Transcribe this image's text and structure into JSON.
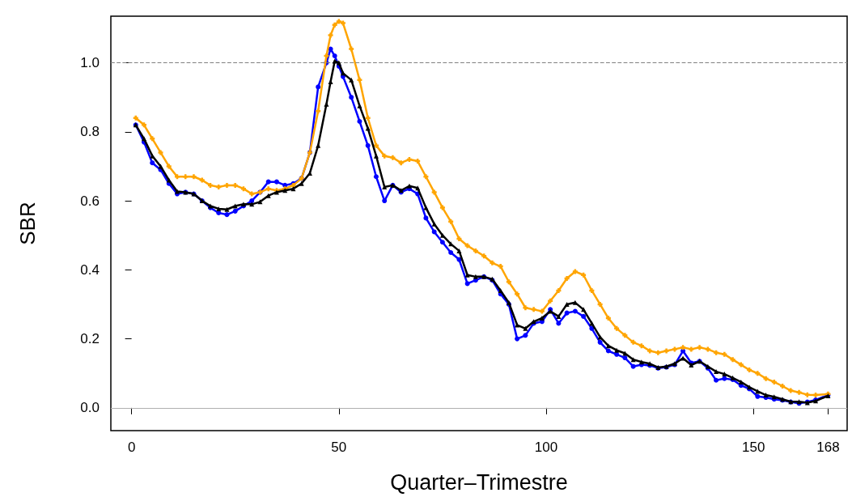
{
  "chart_data": {
    "type": "line",
    "xlabel": "Quarter–Trimestre",
    "ylabel": "SBR",
    "x": [
      1,
      3,
      5,
      7,
      9,
      11,
      13,
      15,
      17,
      19,
      21,
      23,
      25,
      27,
      29,
      31,
      33,
      35,
      37,
      39,
      41,
      43,
      45,
      47,
      48,
      49,
      50,
      51,
      53,
      55,
      57,
      59,
      61,
      63,
      65,
      67,
      69,
      71,
      73,
      75,
      77,
      79,
      81,
      83,
      85,
      87,
      89,
      91,
      93,
      95,
      97,
      99,
      101,
      103,
      105,
      107,
      109,
      111,
      113,
      115,
      117,
      119,
      121,
      123,
      125,
      127,
      129,
      131,
      133,
      135,
      137,
      139,
      141,
      143,
      145,
      147,
      149,
      151,
      153,
      155,
      157,
      159,
      161,
      163,
      165,
      168
    ],
    "series": [
      {
        "color": "#0000ff",
        "marker": "circle",
        "values": [
          0.82,
          0.77,
          0.71,
          0.69,
          0.65,
          0.62,
          0.625,
          0.62,
          0.6,
          0.58,
          0.565,
          0.56,
          0.57,
          0.585,
          0.6,
          0.625,
          0.655,
          0.655,
          0.645,
          0.65,
          0.665,
          0.74,
          0.93,
          1.0,
          1.04,
          1.02,
          0.99,
          0.96,
          0.9,
          0.83,
          0.76,
          0.67,
          0.6,
          0.645,
          0.625,
          0.635,
          0.62,
          0.55,
          0.51,
          0.48,
          0.45,
          0.43,
          0.36,
          0.37,
          0.38,
          0.37,
          0.33,
          0.3,
          0.2,
          0.21,
          0.245,
          0.25,
          0.285,
          0.245,
          0.275,
          0.28,
          0.265,
          0.23,
          0.19,
          0.165,
          0.155,
          0.145,
          0.12,
          0.125,
          0.123,
          0.115,
          0.118,
          0.125,
          0.165,
          0.13,
          0.135,
          0.115,
          0.08,
          0.085,
          0.082,
          0.065,
          0.055,
          0.033,
          0.03,
          0.025,
          0.022,
          0.017,
          0.013,
          0.017,
          0.023,
          0.037
        ]
      },
      {
        "color": "#ffa500",
        "marker": "cross",
        "values": [
          0.84,
          0.82,
          0.78,
          0.74,
          0.7,
          0.67,
          0.67,
          0.67,
          0.66,
          0.645,
          0.64,
          0.645,
          0.645,
          0.635,
          0.62,
          0.625,
          0.635,
          0.63,
          0.635,
          0.645,
          0.665,
          0.74,
          0.86,
          1.02,
          1.08,
          1.11,
          1.12,
          1.115,
          1.04,
          0.95,
          0.84,
          0.76,
          0.73,
          0.725,
          0.71,
          0.72,
          0.715,
          0.67,
          0.625,
          0.58,
          0.54,
          0.49,
          0.47,
          0.455,
          0.44,
          0.42,
          0.41,
          0.365,
          0.33,
          0.29,
          0.285,
          0.28,
          0.31,
          0.34,
          0.375,
          0.395,
          0.385,
          0.34,
          0.3,
          0.26,
          0.23,
          0.21,
          0.19,
          0.18,
          0.165,
          0.16,
          0.165,
          0.17,
          0.175,
          0.17,
          0.175,
          0.17,
          0.16,
          0.155,
          0.14,
          0.125,
          0.11,
          0.1,
          0.085,
          0.075,
          0.063,
          0.05,
          0.045,
          0.038,
          0.037,
          0.04
        ]
      },
      {
        "color": "#000000",
        "marker": "triangle",
        "values": [
          0.82,
          0.78,
          0.73,
          0.7,
          0.66,
          0.627,
          0.625,
          0.62,
          0.6,
          0.585,
          0.577,
          0.575,
          0.585,
          0.59,
          0.59,
          0.597,
          0.615,
          0.625,
          0.63,
          0.635,
          0.65,
          0.68,
          0.76,
          0.88,
          0.945,
          1.005,
          1.0,
          0.97,
          0.95,
          0.875,
          0.81,
          0.73,
          0.64,
          0.645,
          0.63,
          0.643,
          0.637,
          0.58,
          0.533,
          0.5,
          0.475,
          0.455,
          0.385,
          0.38,
          0.38,
          0.373,
          0.34,
          0.305,
          0.24,
          0.23,
          0.25,
          0.26,
          0.28,
          0.265,
          0.3,
          0.305,
          0.285,
          0.245,
          0.205,
          0.18,
          0.167,
          0.158,
          0.14,
          0.133,
          0.128,
          0.117,
          0.12,
          0.128,
          0.144,
          0.124,
          0.135,
          0.12,
          0.105,
          0.098,
          0.087,
          0.075,
          0.06,
          0.048,
          0.037,
          0.032,
          0.025,
          0.018,
          0.018,
          0.015,
          0.02,
          0.035
        ]
      }
    ],
    "xlim": [
      -5,
      172.6
    ],
    "xticks": [
      0,
      50,
      100,
      150,
      168
    ],
    "ylim": [
      -0.066,
      1.135
    ],
    "yticks": [
      {
        "value": 0,
        "label": "0.0"
      },
      {
        "value": 0.2,
        "label": "0.2"
      },
      {
        "value": 0.4,
        "label": "0.4"
      },
      {
        "value": 0.6,
        "label": "0.6"
      },
      {
        "value": 0.8,
        "label": "0.8"
      },
      {
        "value": 1,
        "label": "1.0"
      }
    ],
    "ref_lines": [
      {
        "axis": "y",
        "value": 1,
        "color": "#808080",
        "line_style": "dashed"
      },
      {
        "axis": "y",
        "value": 0,
        "color": "#b0b0b0",
        "line_style": "solid"
      }
    ],
    "grid": false,
    "line_style": "solid"
  }
}
